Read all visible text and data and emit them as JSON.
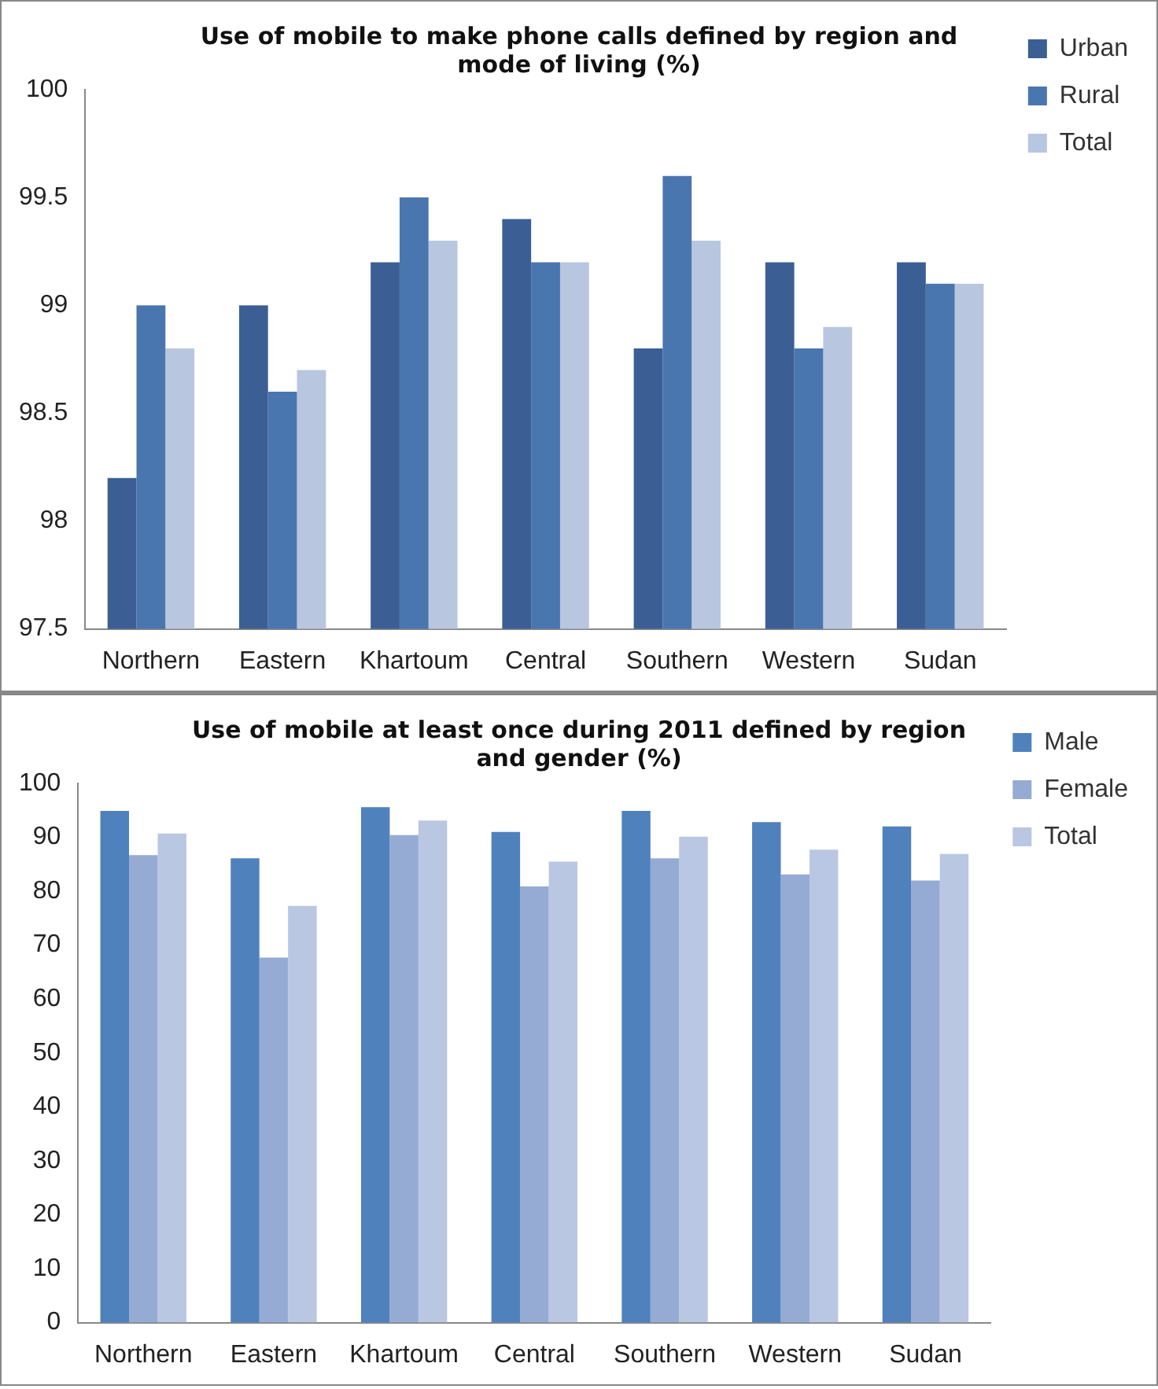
{
  "chart_data": [
    {
      "type": "bar",
      "title": "Use of mobile to make phone calls defined by region and mode of living (%)",
      "categories": [
        "Northern",
        "Eastern",
        "Khartoum",
        "Central",
        "Southern",
        "Western",
        "Sudan"
      ],
      "series": [
        {
          "name": "Urban",
          "color": "#3b5f94",
          "values": [
            98.2,
            99.0,
            99.2,
            99.4,
            98.8,
            99.2,
            99.2
          ]
        },
        {
          "name": "Rural",
          "color": "#4a76b0",
          "values": [
            99.0,
            98.6,
            99.5,
            99.2,
            99.6,
            98.8,
            99.1
          ]
        },
        {
          "name": "Total",
          "color": "#b8c6e0",
          "values": [
            98.8,
            98.7,
            99.3,
            99.2,
            99.3,
            98.9,
            99.1
          ]
        }
      ],
      "ylim": [
        97.5,
        100
      ],
      "yticks": [
        97.5,
        98,
        98.5,
        99,
        99.5,
        100
      ],
      "grid": false,
      "legend": "top right"
    },
    {
      "type": "bar",
      "title": "Use of mobile at least once during 2011 defined by region and gender (%)",
      "categories": [
        "Northern",
        "Eastern",
        "Khartoum",
        "Central",
        "Southern",
        "Western",
        "Sudan"
      ],
      "series": [
        {
          "name": "Male",
          "color": "#4f81bd",
          "values": [
            94.9,
            86.1,
            95.6,
            91.0,
            94.9,
            92.8,
            92.0
          ]
        },
        {
          "name": "Female",
          "color": "#95abd4",
          "values": [
            86.7,
            67.7,
            90.4,
            80.9,
            86.1,
            83.1,
            82.0
          ]
        },
        {
          "name": "Total",
          "color": "#b9c7e2",
          "values": [
            90.7,
            77.3,
            93.1,
            85.5,
            90.1,
            87.7,
            86.9
          ]
        }
      ],
      "ylim": [
        0,
        100
      ],
      "yticks": [
        0,
        10,
        20,
        30,
        40,
        50,
        60,
        70,
        80,
        90,
        100
      ],
      "grid": false,
      "legend": "top right"
    }
  ]
}
